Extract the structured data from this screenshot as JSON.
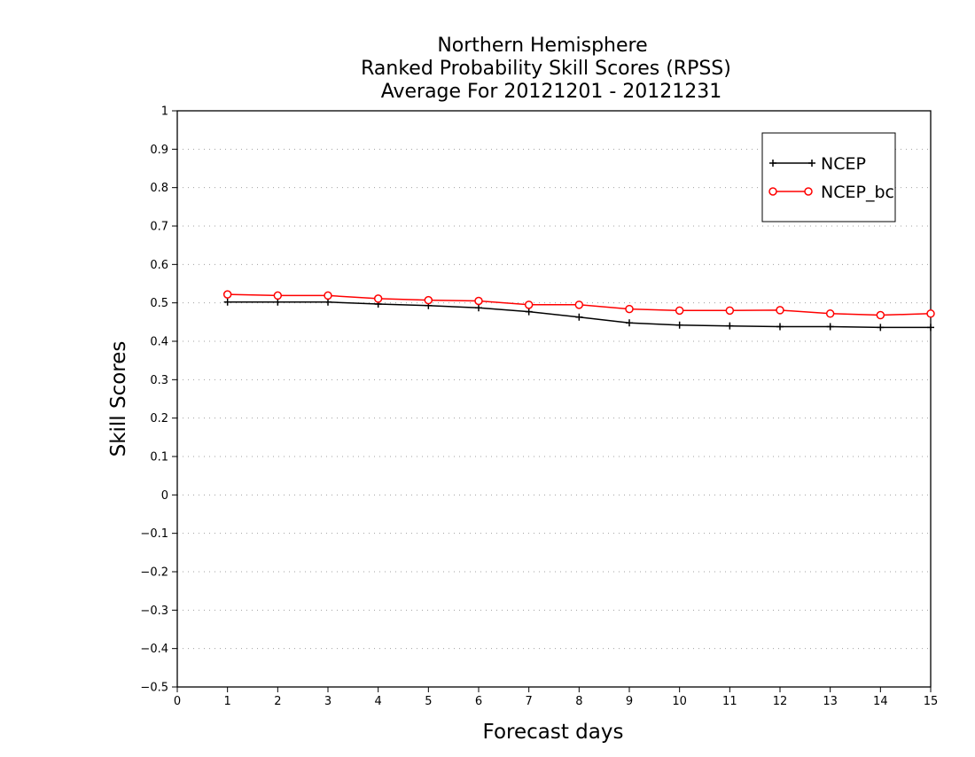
{
  "chart_data": {
    "type": "line",
    "title": [
      "Northern Hemisphere",
      "Ranked Probability Skill Scores (RPSS)",
      "Average For 20121201 - 20121231"
    ],
    "xlabel": "Forecast days",
    "ylabel": "Skill Scores",
    "xlim": [
      0,
      15
    ],
    "ylim": [
      -0.5,
      1
    ],
    "x_ticks": [
      "0",
      "1",
      "2",
      "3",
      "4",
      "5",
      "6",
      "7",
      "8",
      "9",
      "10",
      "11",
      "12",
      "13",
      "14",
      "15"
    ],
    "y_ticks": [
      "−0.5",
      "−0.4",
      "−0.3",
      "−0.2",
      "−0.1",
      "0",
      "0.1",
      "0.2",
      "0.3",
      "0.4",
      "0.5",
      "0.6",
      "0.7",
      "0.8",
      "0.9",
      "1"
    ],
    "grid": true,
    "legend_position": "top-right",
    "x": [
      1,
      2,
      3,
      4,
      5,
      6,
      7,
      8,
      9,
      10,
      11,
      12,
      13,
      14,
      15
    ],
    "series": [
      {
        "name": "NCEP",
        "color": "#000000",
        "marker": "plus",
        "values": [
          0.502,
          0.502,
          0.502,
          0.497,
          0.493,
          0.487,
          0.477,
          0.463,
          0.448,
          0.442,
          0.44,
          0.438,
          0.438,
          0.436,
          0.436
        ]
      },
      {
        "name": "NCEP_bc",
        "color": "#ff0000",
        "marker": "circle",
        "values": [
          0.522,
          0.519,
          0.519,
          0.511,
          0.507,
          0.505,
          0.495,
          0.495,
          0.484,
          0.48,
          0.48,
          0.481,
          0.472,
          0.468,
          0.472
        ]
      }
    ]
  }
}
